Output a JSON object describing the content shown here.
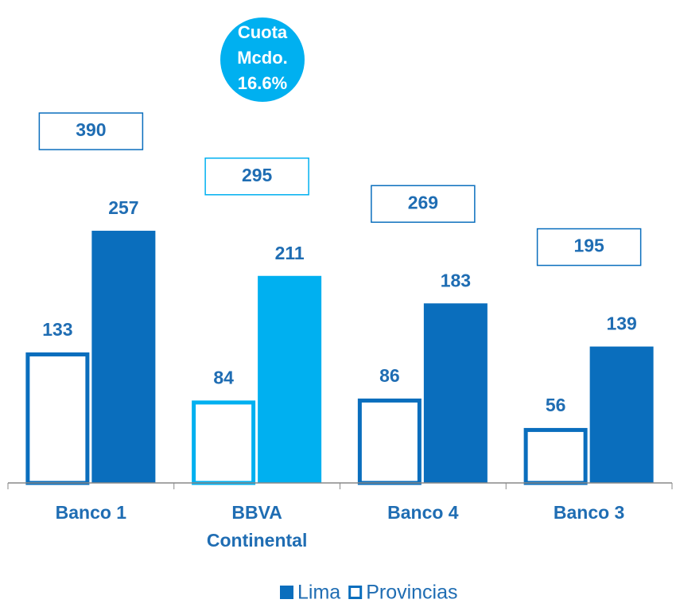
{
  "chart_data": {
    "type": "bar",
    "categories": [
      [
        "Banco 1"
      ],
      [
        "BBVA",
        "Continental"
      ],
      [
        "Banco 4"
      ],
      [
        "Banco 3"
      ]
    ],
    "series": [
      {
        "name": "Provincias",
        "style": "outline",
        "colors": [
          "#0a6ebd",
          "#00b0f0",
          "#0a6ebd",
          "#0a6ebd"
        ],
        "values": [
          133,
          84,
          86,
          56
        ]
      },
      {
        "name": "Lima",
        "style": "filled",
        "colors": [
          "#0a6ebd",
          "#00b0f0",
          "#0a6ebd",
          "#0a6ebd"
        ],
        "values": [
          257,
          211,
          183,
          139
        ]
      }
    ],
    "totals": [
      390,
      295,
      269,
      195
    ],
    "annotation": {
      "lines": [
        "Cuota",
        "Mcdo.",
        "16.6%"
      ],
      "color": "#00b0f0"
    },
    "legend_order": [
      1,
      0
    ],
    "ylim": [
      0,
      300
    ]
  }
}
